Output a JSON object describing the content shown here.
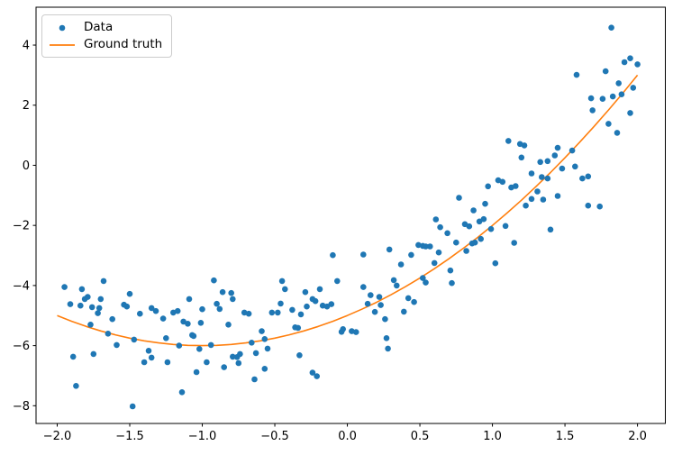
{
  "chart_data": {
    "type": "scatter",
    "title": "",
    "xlabel": "",
    "ylabel": "",
    "axes": {
      "xlim": [
        -2.146,
        2.192
      ],
      "ylim": [
        -8.59,
        5.26
      ],
      "xtick_values": [
        -2.0,
        -1.5,
        -1.0,
        -0.5,
        0.0,
        0.5,
        1.0,
        1.5,
        2.0
      ],
      "xtick_labels": [
        "−2.0",
        "−1.5",
        "−1.0",
        "−0.5",
        "0.0",
        "0.5",
        "1.0",
        "1.5",
        "2.0"
      ],
      "ytick_values": [
        4,
        2,
        0,
        -2,
        -4,
        -6,
        -8
      ],
      "ytick_labels": [
        "4",
        "2",
        "0",
        "−2",
        "−4",
        "−6",
        "−8"
      ],
      "spine_color": "#000000",
      "grid": false
    },
    "legend": {
      "position": "upper-left",
      "items": [
        {
          "label": "Data",
          "glyph": "dot",
          "color": "#1f77b4"
        },
        {
          "label": "Ground truth",
          "glyph": "line",
          "color": "#ff7f0e"
        }
      ]
    },
    "series": [
      {
        "name": "Data",
        "type": "scatter",
        "color": "#1f77b4",
        "marker_radius": 3.3,
        "points": [
          [
            -1.95,
            -4.05
          ],
          [
            -1.91,
            -4.62
          ],
          [
            -1.89,
            -6.37
          ],
          [
            -1.87,
            -7.34
          ],
          [
            -1.84,
            -4.67
          ],
          [
            -1.83,
            -4.12
          ],
          [
            -1.81,
            -4.45
          ],
          [
            -1.79,
            -4.38
          ],
          [
            -1.77,
            -5.3
          ],
          [
            -1.76,
            -4.72
          ],
          [
            -1.75,
            -6.28
          ],
          [
            -1.72,
            -4.92
          ],
          [
            -1.71,
            -4.75
          ],
          [
            -1.7,
            -4.45
          ],
          [
            -1.68,
            -3.85
          ],
          [
            -1.65,
            -5.6
          ],
          [
            -1.62,
            -5.12
          ],
          [
            -1.59,
            -5.98
          ],
          [
            -1.54,
            -4.64
          ],
          [
            -1.52,
            -4.7
          ],
          [
            -1.5,
            -4.28
          ],
          [
            -1.48,
            -8.02
          ],
          [
            -1.47,
            -5.8
          ],
          [
            -1.43,
            -4.94
          ],
          [
            -1.4,
            -6.55
          ],
          [
            -1.37,
            -6.17
          ],
          [
            -1.35,
            -6.4
          ],
          [
            -1.35,
            -4.75
          ],
          [
            -1.32,
            -4.85
          ],
          [
            -1.27,
            -5.1
          ],
          [
            -1.25,
            -5.75
          ],
          [
            -1.24,
            -6.55
          ],
          [
            -1.2,
            -4.9
          ],
          [
            -1.17,
            -4.85
          ],
          [
            -1.16,
            -6.0
          ],
          [
            -1.14,
            -7.55
          ],
          [
            -1.13,
            -5.2
          ],
          [
            -1.1,
            -5.27
          ],
          [
            -1.09,
            -4.45
          ],
          [
            -1.07,
            -5.65
          ],
          [
            -1.06,
            -5.68
          ],
          [
            -1.04,
            -6.88
          ],
          [
            -1.02,
            -6.11
          ],
          [
            -1.01,
            -5.24
          ],
          [
            -1.0,
            -4.79
          ],
          [
            -0.97,
            -6.55
          ],
          [
            -0.94,
            -5.98
          ],
          [
            -0.92,
            -3.83
          ],
          [
            -0.9,
            -4.61
          ],
          [
            -0.88,
            -4.78
          ],
          [
            -0.86,
            -4.22
          ],
          [
            -0.85,
            -6.72
          ],
          [
            -0.82,
            -5.3
          ],
          [
            -0.8,
            -4.25
          ],
          [
            -0.79,
            -4.45
          ],
          [
            -0.79,
            -6.37
          ],
          [
            -0.76,
            -6.38
          ],
          [
            -0.75,
            -6.58
          ],
          [
            -0.74,
            -6.28
          ],
          [
            -0.71,
            -4.9
          ],
          [
            -0.68,
            -4.94
          ],
          [
            -0.66,
            -5.9
          ],
          [
            -0.64,
            -7.12
          ],
          [
            -0.63,
            -6.25
          ],
          [
            -0.59,
            -5.52
          ],
          [
            -0.57,
            -5.78
          ],
          [
            -0.57,
            -6.77
          ],
          [
            -0.55,
            -6.1
          ],
          [
            -0.52,
            -4.9
          ],
          [
            -0.48,
            -4.9
          ],
          [
            -0.46,
            -4.6
          ],
          [
            -0.45,
            -3.85
          ],
          [
            -0.43,
            -4.12
          ],
          [
            -0.38,
            -4.81
          ],
          [
            -0.36,
            -5.39
          ],
          [
            -0.34,
            -5.41
          ],
          [
            -0.33,
            -6.32
          ],
          [
            -0.32,
            -4.96
          ],
          [
            -0.29,
            -4.22
          ],
          [
            -0.28,
            -4.7
          ],
          [
            -0.24,
            -4.45
          ],
          [
            -0.24,
            -6.9
          ],
          [
            -0.22,
            -4.52
          ],
          [
            -0.21,
            -7.02
          ],
          [
            -0.19,
            -4.12
          ],
          [
            -0.17,
            -4.67
          ],
          [
            -0.14,
            -4.7
          ],
          [
            -0.11,
            -4.62
          ],
          [
            -0.1,
            -2.99
          ],
          [
            -0.07,
            -3.85
          ],
          [
            -0.04,
            -5.54
          ],
          [
            -0.03,
            -5.45
          ],
          [
            0.03,
            -5.52
          ],
          [
            0.06,
            -5.55
          ],
          [
            0.11,
            -2.97
          ],
          [
            0.11,
            -4.05
          ],
          [
            0.14,
            -4.61
          ],
          [
            0.16,
            -4.32
          ],
          [
            0.19,
            -4.88
          ],
          [
            0.22,
            -4.38
          ],
          [
            0.23,
            -4.65
          ],
          [
            0.26,
            -5.12
          ],
          [
            0.27,
            -5.75
          ],
          [
            0.28,
            -6.1
          ],
          [
            0.29,
            -2.8
          ],
          [
            0.32,
            -3.82
          ],
          [
            0.34,
            -4.0
          ],
          [
            0.37,
            -3.3
          ],
          [
            0.39,
            -4.87
          ],
          [
            0.42,
            -4.42
          ],
          [
            0.44,
            -2.98
          ],
          [
            0.46,
            -4.55
          ],
          [
            0.49,
            -2.65
          ],
          [
            0.52,
            -2.68
          ],
          [
            0.52,
            -3.75
          ],
          [
            0.54,
            -2.7
          ],
          [
            0.54,
            -3.9
          ],
          [
            0.57,
            -2.7
          ],
          [
            0.6,
            -3.25
          ],
          [
            0.61,
            -1.8
          ],
          [
            0.63,
            -2.9
          ],
          [
            0.64,
            -2.06
          ],
          [
            0.69,
            -2.26
          ],
          [
            0.71,
            -3.5
          ],
          [
            0.72,
            -3.92
          ],
          [
            0.75,
            -2.57
          ],
          [
            0.77,
            -1.08
          ],
          [
            0.81,
            -1.96
          ],
          [
            0.82,
            -2.85
          ],
          [
            0.84,
            -2.03
          ],
          [
            0.86,
            -2.6
          ],
          [
            0.87,
            -1.5
          ],
          [
            0.88,
            -2.57
          ],
          [
            0.91,
            -1.87
          ],
          [
            0.92,
            -2.45
          ],
          [
            0.94,
            -1.79
          ],
          [
            0.95,
            -1.28
          ],
          [
            0.97,
            -0.7
          ],
          [
            0.99,
            -2.12
          ],
          [
            1.02,
            -3.26
          ],
          [
            1.04,
            -0.5
          ],
          [
            1.07,
            -0.55
          ],
          [
            1.09,
            -2.02
          ],
          [
            1.11,
            0.81
          ],
          [
            1.13,
            -0.74
          ],
          [
            1.15,
            -2.58
          ],
          [
            1.16,
            -0.69
          ],
          [
            1.19,
            0.71
          ],
          [
            1.2,
            0.26
          ],
          [
            1.22,
            0.66
          ],
          [
            1.23,
            -1.34
          ],
          [
            1.27,
            -0.27
          ],
          [
            1.27,
            -1.12
          ],
          [
            1.31,
            -0.87
          ],
          [
            1.33,
            0.11
          ],
          [
            1.34,
            -0.39
          ],
          [
            1.35,
            -1.14
          ],
          [
            1.38,
            -0.44
          ],
          [
            1.38,
            0.14
          ],
          [
            1.4,
            -2.14
          ],
          [
            1.43,
            0.33
          ],
          [
            1.45,
            0.58
          ],
          [
            1.45,
            -1.02
          ],
          [
            1.48,
            -0.11
          ],
          [
            1.55,
            0.49
          ],
          [
            1.57,
            -0.04
          ],
          [
            1.58,
            3.01
          ],
          [
            1.62,
            -0.44
          ],
          [
            1.66,
            -0.37
          ],
          [
            1.66,
            -1.34
          ],
          [
            1.68,
            2.23
          ],
          [
            1.69,
            1.83
          ],
          [
            1.74,
            -1.37
          ],
          [
            1.76,
            2.21
          ],
          [
            1.78,
            3.13
          ],
          [
            1.8,
            1.38
          ],
          [
            1.82,
            4.58
          ],
          [
            1.83,
            2.29
          ],
          [
            1.86,
            1.08
          ],
          [
            1.87,
            2.73
          ],
          [
            1.89,
            2.36
          ],
          [
            1.91,
            3.43
          ],
          [
            1.95,
            3.56
          ],
          [
            1.95,
            1.74
          ],
          [
            1.97,
            2.58
          ],
          [
            2.0,
            3.36
          ]
        ]
      },
      {
        "name": "Ground truth",
        "type": "line",
        "color": "#ff7f0e",
        "line_width": 1.6,
        "formula": "y = (x+1)^2 - 6",
        "points": [
          [
            -2.0,
            -5.0
          ],
          [
            -1.9,
            -5.19
          ],
          [
            -1.8,
            -5.36
          ],
          [
            -1.7,
            -5.51
          ],
          [
            -1.6,
            -5.64
          ],
          [
            -1.5,
            -5.75
          ],
          [
            -1.4,
            -5.84
          ],
          [
            -1.3,
            -5.91
          ],
          [
            -1.2,
            -5.96
          ],
          [
            -1.1,
            -5.99
          ],
          [
            -1.0,
            -6.0
          ],
          [
            -0.9,
            -5.99
          ],
          [
            -0.8,
            -5.96
          ],
          [
            -0.7,
            -5.91
          ],
          [
            -0.6,
            -5.84
          ],
          [
            -0.5,
            -5.75
          ],
          [
            -0.4,
            -5.64
          ],
          [
            -0.3,
            -5.51
          ],
          [
            -0.2,
            -5.36
          ],
          [
            -0.1,
            -5.19
          ],
          [
            0.0,
            -5.0
          ],
          [
            0.1,
            -4.79
          ],
          [
            0.2,
            -4.56
          ],
          [
            0.3,
            -4.31
          ],
          [
            0.4,
            -4.04
          ],
          [
            0.5,
            -3.75
          ],
          [
            0.6,
            -3.44
          ],
          [
            0.7,
            -3.11
          ],
          [
            0.8,
            -2.76
          ],
          [
            0.9,
            -2.39
          ],
          [
            1.0,
            -2.0
          ],
          [
            1.1,
            -1.59
          ],
          [
            1.2,
            -1.16
          ],
          [
            1.3,
            -0.71
          ],
          [
            1.4,
            -0.24
          ],
          [
            1.5,
            0.25
          ],
          [
            1.6,
            0.76
          ],
          [
            1.7,
            1.29
          ],
          [
            1.8,
            1.84
          ],
          [
            1.9,
            2.41
          ],
          [
            2.0,
            3.0
          ]
        ]
      }
    ]
  }
}
